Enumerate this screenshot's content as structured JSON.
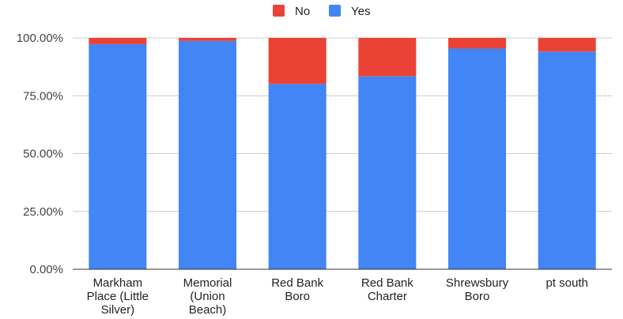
{
  "chart_data": {
    "type": "bar",
    "stacked": true,
    "percent": true,
    "categories": [
      [
        "Markham",
        "Place (Little",
        "Silver)"
      ],
      [
        "Memorial",
        "(Union",
        "Beach)"
      ],
      [
        "Red Bank",
        "Boro"
      ],
      [
        "Red Bank",
        "Charter"
      ],
      [
        "Shrewsbury",
        "Boro"
      ],
      [
        "pt south"
      ]
    ],
    "series": [
      {
        "name": "Yes",
        "color": "#4285f4",
        "values": [
          97.3,
          98.7,
          80.1,
          83.4,
          95.4,
          94.1
        ]
      },
      {
        "name": "No",
        "color": "#ea4335",
        "values": [
          2.7,
          1.3,
          19.9,
          16.6,
          4.6,
          5.9
        ]
      }
    ],
    "yticks": [
      "0.00%",
      "25.00%",
      "50.00%",
      "75.00%",
      "100.00%"
    ],
    "ylim": [
      0,
      100
    ],
    "grid": true,
    "legend": {
      "position": "top",
      "order": [
        "No",
        "Yes"
      ]
    }
  }
}
